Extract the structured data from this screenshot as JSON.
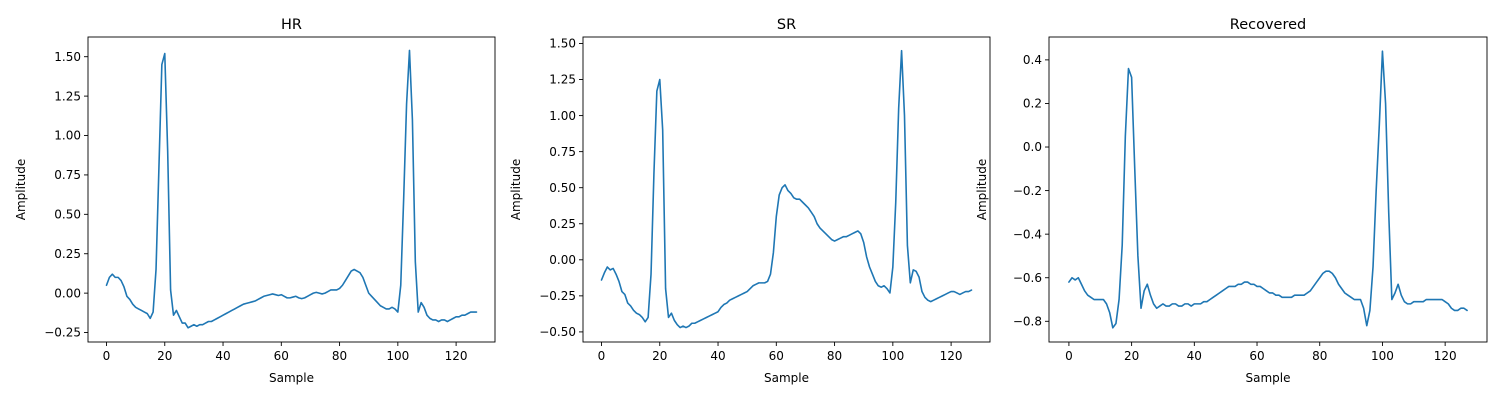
{
  "chart_data": [
    {
      "type": "line",
      "title": "HR",
      "xlabel": "Sample",
      "ylabel": "Amplitude",
      "xlim": [
        -6.35,
        133.35
      ],
      "ylim": [
        -0.31,
        1.625
      ],
      "xticks": [
        0,
        20,
        40,
        60,
        80,
        100,
        120
      ],
      "xtick_labels": [
        "0",
        "20",
        "40",
        "60",
        "80",
        "100",
        "120"
      ],
      "yticks": [
        -0.25,
        0.0,
        0.25,
        0.5,
        0.75,
        1.0,
        1.25,
        1.5
      ],
      "ytick_labels": [
        "−0.25",
        "0.00",
        "0.25",
        "0.50",
        "0.75",
        "1.00",
        "1.25",
        "1.50"
      ],
      "grid": false,
      "color": "#1f77b4",
      "x": [
        0,
        1,
        2,
        3,
        4,
        5,
        6,
        7,
        8,
        9,
        10,
        11,
        12,
        13,
        14,
        15,
        16,
        17,
        18,
        19,
        20,
        21,
        22,
        23,
        24,
        25,
        26,
        27,
        28,
        29,
        30,
        31,
        32,
        33,
        34,
        35,
        36,
        37,
        38,
        39,
        40,
        41,
        42,
        43,
        44,
        45,
        46,
        47,
        48,
        49,
        50,
        51,
        52,
        53,
        54,
        55,
        56,
        57,
        58,
        59,
        60,
        61,
        62,
        63,
        64,
        65,
        66,
        67,
        68,
        69,
        70,
        71,
        72,
        73,
        74,
        75,
        76,
        77,
        78,
        79,
        80,
        81,
        82,
        83,
        84,
        85,
        86,
        87,
        88,
        89,
        90,
        91,
        92,
        93,
        94,
        95,
        96,
        97,
        98,
        99,
        100,
        101,
        102,
        103,
        104,
        105,
        106,
        107,
        108,
        109,
        110,
        111,
        112,
        113,
        114,
        115,
        116,
        117,
        118,
        119,
        120,
        121,
        122,
        123,
        124,
        125,
        126,
        127
      ],
      "y": [
        0.05,
        0.1,
        0.12,
        0.1,
        0.1,
        0.08,
        0.04,
        -0.02,
        -0.04,
        -0.07,
        -0.09,
        -0.1,
        -0.11,
        -0.12,
        -0.13,
        -0.16,
        -0.12,
        0.15,
        0.8,
        1.45,
        1.52,
        0.9,
        0.02,
        -0.14,
        -0.11,
        -0.15,
        -0.19,
        -0.19,
        -0.22,
        -0.21,
        -0.2,
        -0.21,
        -0.2,
        -0.2,
        -0.19,
        -0.18,
        -0.18,
        -0.17,
        -0.16,
        -0.15,
        -0.14,
        -0.13,
        -0.12,
        -0.11,
        -0.1,
        -0.09,
        -0.08,
        -0.07,
        -0.065,
        -0.06,
        -0.055,
        -0.05,
        -0.04,
        -0.03,
        -0.02,
        -0.015,
        -0.01,
        -0.005,
        -0.01,
        -0.015,
        -0.01,
        -0.02,
        -0.03,
        -0.03,
        -0.025,
        -0.02,
        -0.03,
        -0.035,
        -0.03,
        -0.02,
        -0.01,
        0.0,
        0.005,
        0.0,
        -0.005,
        0.0,
        0.01,
        0.02,
        0.02,
        0.02,
        0.03,
        0.05,
        0.08,
        0.11,
        0.14,
        0.15,
        0.14,
        0.13,
        0.1,
        0.05,
        0.0,
        -0.02,
        -0.04,
        -0.06,
        -0.08,
        -0.09,
        -0.1,
        -0.1,
        -0.09,
        -0.1,
        -0.12,
        0.05,
        0.6,
        1.2,
        1.54,
        1.1,
        0.2,
        -0.12,
        -0.06,
        -0.09,
        -0.14,
        -0.16,
        -0.17,
        -0.17,
        -0.18,
        -0.17,
        -0.17,
        -0.18,
        -0.17,
        -0.16,
        -0.15,
        -0.15,
        -0.14,
        -0.14,
        -0.13,
        -0.12,
        -0.12,
        -0.12
      ]
    },
    {
      "type": "line",
      "title": "SR",
      "xlabel": "Sample",
      "ylabel": "Amplitude",
      "xlim": [
        -6.35,
        133.35
      ],
      "ylim": [
        -0.57,
        1.545
      ],
      "xticks": [
        0,
        20,
        40,
        60,
        80,
        100,
        120
      ],
      "xtick_labels": [
        "0",
        "20",
        "40",
        "60",
        "80",
        "100",
        "120"
      ],
      "yticks": [
        -0.5,
        -0.25,
        0.0,
        0.25,
        0.5,
        0.75,
        1.0,
        1.25,
        1.5
      ],
      "ytick_labels": [
        "−0.50",
        "−0.25",
        "0.00",
        "0.25",
        "0.50",
        "0.75",
        "1.00",
        "1.25",
        "1.50"
      ],
      "grid": false,
      "color": "#1f77b4",
      "x": [
        0,
        1,
        2,
        3,
        4,
        5,
        6,
        7,
        8,
        9,
        10,
        11,
        12,
        13,
        14,
        15,
        16,
        17,
        18,
        19,
        20,
        21,
        22,
        23,
        24,
        25,
        26,
        27,
        28,
        29,
        30,
        31,
        32,
        33,
        34,
        35,
        36,
        37,
        38,
        39,
        40,
        41,
        42,
        43,
        44,
        45,
        46,
        47,
        48,
        49,
        50,
        51,
        52,
        53,
        54,
        55,
        56,
        57,
        58,
        59,
        60,
        61,
        62,
        63,
        64,
        65,
        66,
        67,
        68,
        69,
        70,
        71,
        72,
        73,
        74,
        75,
        76,
        77,
        78,
        79,
        80,
        81,
        82,
        83,
        84,
        85,
        86,
        87,
        88,
        89,
        90,
        91,
        92,
        93,
        94,
        95,
        96,
        97,
        98,
        99,
        100,
        101,
        102,
        103,
        104,
        105,
        106,
        107,
        108,
        109,
        110,
        111,
        112,
        113,
        114,
        115,
        116,
        117,
        118,
        119,
        120,
        121,
        122,
        123,
        124,
        125,
        126,
        127
      ],
      "y": [
        -0.14,
        -0.09,
        -0.05,
        -0.07,
        -0.06,
        -0.1,
        -0.15,
        -0.22,
        -0.24,
        -0.3,
        -0.32,
        -0.35,
        -0.37,
        -0.38,
        -0.4,
        -0.43,
        -0.4,
        -0.1,
        0.6,
        1.17,
        1.25,
        0.9,
        -0.2,
        -0.4,
        -0.37,
        -0.42,
        -0.45,
        -0.47,
        -0.46,
        -0.47,
        -0.46,
        -0.44,
        -0.44,
        -0.43,
        -0.42,
        -0.41,
        -0.4,
        -0.39,
        -0.38,
        -0.37,
        -0.36,
        -0.33,
        -0.31,
        -0.3,
        -0.28,
        -0.27,
        -0.26,
        -0.25,
        -0.24,
        -0.23,
        -0.22,
        -0.2,
        -0.18,
        -0.17,
        -0.16,
        -0.16,
        -0.16,
        -0.15,
        -0.1,
        0.05,
        0.3,
        0.45,
        0.5,
        0.52,
        0.48,
        0.46,
        0.43,
        0.42,
        0.42,
        0.4,
        0.38,
        0.36,
        0.33,
        0.3,
        0.25,
        0.22,
        0.2,
        0.18,
        0.16,
        0.14,
        0.13,
        0.14,
        0.15,
        0.16,
        0.16,
        0.17,
        0.18,
        0.19,
        0.2,
        0.18,
        0.12,
        0.02,
        -0.05,
        -0.1,
        -0.15,
        -0.18,
        -0.19,
        -0.18,
        -0.2,
        -0.23,
        -0.05,
        0.4,
        1.05,
        1.45,
        1.0,
        0.1,
        -0.16,
        -0.07,
        -0.08,
        -0.12,
        -0.22,
        -0.26,
        -0.28,
        -0.29,
        -0.28,
        -0.27,
        -0.26,
        -0.25,
        -0.24,
        -0.23,
        -0.22,
        -0.22,
        -0.23,
        -0.24,
        -0.23,
        -0.22,
        -0.22,
        -0.21
      ]
    },
    {
      "type": "line",
      "title": "Recovered",
      "xlabel": "Sample",
      "ylabel": "Amplitude",
      "xlim": [
        -6.35,
        133.35
      ],
      "ylim": [
        -0.895,
        0.505
      ],
      "xticks": [
        0,
        20,
        40,
        60,
        80,
        100,
        120
      ],
      "xtick_labels": [
        "0",
        "20",
        "40",
        "60",
        "80",
        "100",
        "120"
      ],
      "yticks": [
        -0.8,
        -0.6,
        -0.4,
        -0.2,
        0.0,
        0.2,
        0.4
      ],
      "ytick_labels": [
        "−0.8",
        "−0.6",
        "−0.4",
        "−0.2",
        "0.0",
        "0.2",
        "0.4"
      ],
      "grid": false,
      "color": "#1f77b4",
      "x": [
        0,
        1,
        2,
        3,
        4,
        5,
        6,
        7,
        8,
        9,
        10,
        11,
        12,
        13,
        14,
        15,
        16,
        17,
        18,
        19,
        20,
        21,
        22,
        23,
        24,
        25,
        26,
        27,
        28,
        29,
        30,
        31,
        32,
        33,
        34,
        35,
        36,
        37,
        38,
        39,
        40,
        41,
        42,
        43,
        44,
        45,
        46,
        47,
        48,
        49,
        50,
        51,
        52,
        53,
        54,
        55,
        56,
        57,
        58,
        59,
        60,
        61,
        62,
        63,
        64,
        65,
        66,
        67,
        68,
        69,
        70,
        71,
        72,
        73,
        74,
        75,
        76,
        77,
        78,
        79,
        80,
        81,
        82,
        83,
        84,
        85,
        86,
        87,
        88,
        89,
        90,
        91,
        92,
        93,
        94,
        95,
        96,
        97,
        98,
        99,
        100,
        101,
        102,
        103,
        104,
        105,
        106,
        107,
        108,
        109,
        110,
        111,
        112,
        113,
        114,
        115,
        116,
        117,
        118,
        119,
        120,
        121,
        122,
        123,
        124,
        125,
        126,
        127
      ],
      "y": [
        -0.62,
        -0.6,
        -0.61,
        -0.6,
        -0.63,
        -0.66,
        -0.68,
        -0.69,
        -0.7,
        -0.7,
        -0.7,
        -0.7,
        -0.72,
        -0.76,
        -0.83,
        -0.81,
        -0.7,
        -0.45,
        0.05,
        0.36,
        0.32,
        -0.1,
        -0.5,
        -0.74,
        -0.66,
        -0.63,
        -0.68,
        -0.72,
        -0.74,
        -0.73,
        -0.72,
        -0.73,
        -0.73,
        -0.72,
        -0.72,
        -0.73,
        -0.73,
        -0.72,
        -0.72,
        -0.73,
        -0.72,
        -0.72,
        -0.72,
        -0.71,
        -0.71,
        -0.7,
        -0.69,
        -0.68,
        -0.67,
        -0.66,
        -0.65,
        -0.64,
        -0.64,
        -0.64,
        -0.63,
        -0.63,
        -0.62,
        -0.62,
        -0.63,
        -0.63,
        -0.64,
        -0.64,
        -0.65,
        -0.66,
        -0.67,
        -0.67,
        -0.68,
        -0.68,
        -0.69,
        -0.69,
        -0.69,
        -0.69,
        -0.68,
        -0.68,
        -0.68,
        -0.68,
        -0.67,
        -0.66,
        -0.64,
        -0.62,
        -0.6,
        -0.58,
        -0.57,
        -0.57,
        -0.58,
        -0.6,
        -0.63,
        -0.65,
        -0.67,
        -0.68,
        -0.69,
        -0.7,
        -0.7,
        -0.7,
        -0.74,
        -0.82,
        -0.75,
        -0.55,
        -0.2,
        0.1,
        0.44,
        0.2,
        -0.3,
        -0.7,
        -0.67,
        -0.63,
        -0.68,
        -0.71,
        -0.72,
        -0.72,
        -0.71,
        -0.71,
        -0.71,
        -0.71,
        -0.7,
        -0.7,
        -0.7,
        -0.7,
        -0.7,
        -0.7,
        -0.71,
        -0.72,
        -0.74,
        -0.75,
        -0.75,
        -0.74,
        -0.74,
        -0.75
      ]
    }
  ]
}
